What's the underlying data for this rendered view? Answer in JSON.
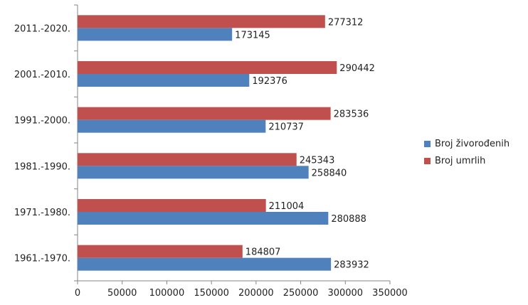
{
  "chart_data": {
    "type": "bar",
    "orientation": "horizontal",
    "categories": [
      "1961.-1970.",
      "1971.-1980.",
      "1981.-1990.",
      "1991.-2000.",
      "2001.-2010.",
      "2011.-2020."
    ],
    "series": [
      {
        "name": "Broj živorođenih",
        "color": "#4f81bd",
        "values": [
          283932,
          280888,
          258840,
          210737,
          192376,
          173145
        ]
      },
      {
        "name": "Broj umrlih",
        "color": "#c0504d",
        "values": [
          184807,
          211004,
          245343,
          283536,
          290442,
          277312
        ]
      }
    ],
    "xlim": [
      0,
      350000
    ],
    "xticks": [
      "0",
      "50000",
      "100000",
      "150000",
      "200000",
      "250000",
      "300000",
      "350000"
    ],
    "grid": false,
    "legend_position": "right"
  }
}
